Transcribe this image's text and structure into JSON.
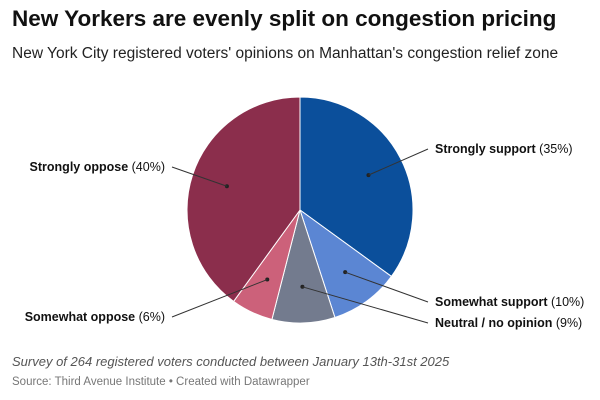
{
  "title": "New Yorkers are evenly split on congestion pricing",
  "subtitle": "New York City registered voters' opinions on Manhattan's congestion relief zone",
  "chart_data": {
    "type": "pie",
    "title": "New Yorkers are evenly split on congestion pricing",
    "slices": [
      {
        "key": "strongly-support",
        "label": "Strongly support",
        "value": 35,
        "pct_text": "(35%)",
        "color": "#0b4f9b"
      },
      {
        "key": "somewhat-support",
        "label": "Somewhat support",
        "value": 10,
        "pct_text": "(10%)",
        "color": "#5b86d3"
      },
      {
        "key": "neutral",
        "label": "Neutral / no opinion",
        "value": 9,
        "pct_text": "(9%)",
        "color": "#737b8e"
      },
      {
        "key": "somewhat-oppose",
        "label": "Somewhat oppose",
        "value": 6,
        "pct_text": "(6%)",
        "color": "#cc617a"
      },
      {
        "key": "strongly-oppose",
        "label": "Strongly oppose",
        "value": 40,
        "pct_text": "(40%)",
        "color": "#8b2e4c"
      }
    ]
  },
  "note": "Survey of 264 registered voters conducted between January 13th-31st 2025",
  "source": "Source: Third Avenue Institute • Created with Datawrapper"
}
